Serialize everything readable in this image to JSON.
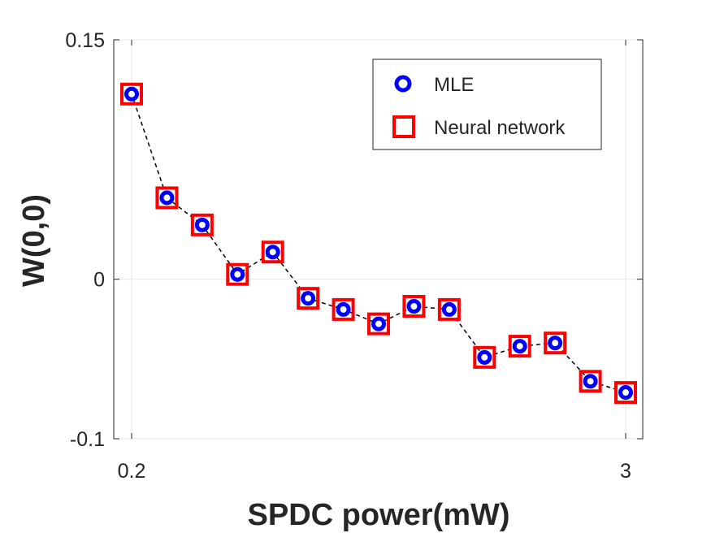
{
  "chart_data": {
    "type": "scatter",
    "title": "",
    "xlabel": "SPDC power(mW)",
    "ylabel": "W(0,0)",
    "xlim": [
      0.2,
      3
    ],
    "ylim": [
      -0.1,
      0.15
    ],
    "xticks": [
      0.2,
      3
    ],
    "xtick_labels": [
      "0.2",
      "3"
    ],
    "yticks": [
      -0.1,
      0,
      0.15
    ],
    "ytick_labels": [
      "-0.1",
      "0",
      "0.15"
    ],
    "grid": true,
    "legend_position": "top-right",
    "x": [
      0.2,
      0.4,
      0.6,
      0.8,
      1.0,
      1.2,
      1.4,
      1.6,
      1.8,
      2.0,
      2.2,
      2.4,
      2.6,
      2.8,
      3.0
    ],
    "connector": {
      "style": "dashed",
      "color": "#000000"
    },
    "series": [
      {
        "name": "MLE",
        "marker": "circle",
        "color": "#0000ff",
        "values": [
          0.116,
          0.051,
          0.034,
          0.003,
          0.017,
          -0.012,
          -0.019,
          -0.028,
          -0.017,
          -0.019,
          -0.049,
          -0.042,
          -0.04,
          -0.064,
          -0.071
        ]
      },
      {
        "name": "Neural network",
        "marker": "square",
        "color": "#ff0000",
        "values": [
          0.116,
          0.051,
          0.034,
          0.003,
          0.017,
          -0.012,
          -0.019,
          -0.028,
          -0.017,
          -0.019,
          -0.049,
          -0.042,
          -0.04,
          -0.064,
          -0.071
        ]
      }
    ]
  }
}
